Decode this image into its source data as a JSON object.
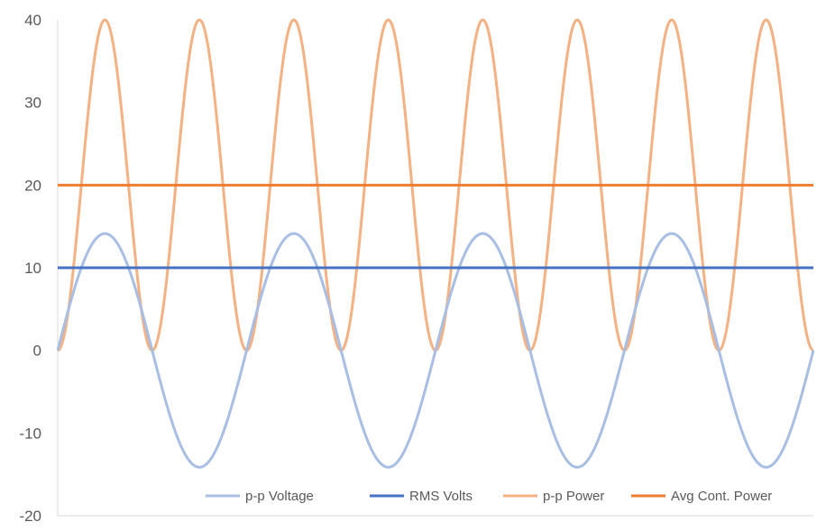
{
  "chart_data": {
    "type": "line",
    "title": "",
    "xlabel": "",
    "ylabel": "",
    "ylim": [
      -20,
      40
    ],
    "y_ticks": [
      "40",
      "30",
      "20",
      "10",
      "0",
      "-10",
      "-20"
    ],
    "y_tick_values": [
      40,
      30,
      20,
      10,
      0,
      -10,
      -20
    ],
    "grid": false,
    "legend_position": "bottom",
    "x_cycles": 4,
    "series": [
      {
        "name": "p-p Voltage",
        "color": "#A9BEE3",
        "kind": "sine",
        "amplitude": 14.14,
        "cycles": 4
      },
      {
        "name": "RMS Volts",
        "color": "#4472C4",
        "kind": "constant",
        "value": 10
      },
      {
        "name": "p-p Power",
        "color": "#F4B183",
        "kind": "sine_squared",
        "peak": 40,
        "cycles": 4
      },
      {
        "name": "Avg Cont. Power",
        "color": "#ED7D31",
        "kind": "constant",
        "value": 20
      }
    ]
  }
}
